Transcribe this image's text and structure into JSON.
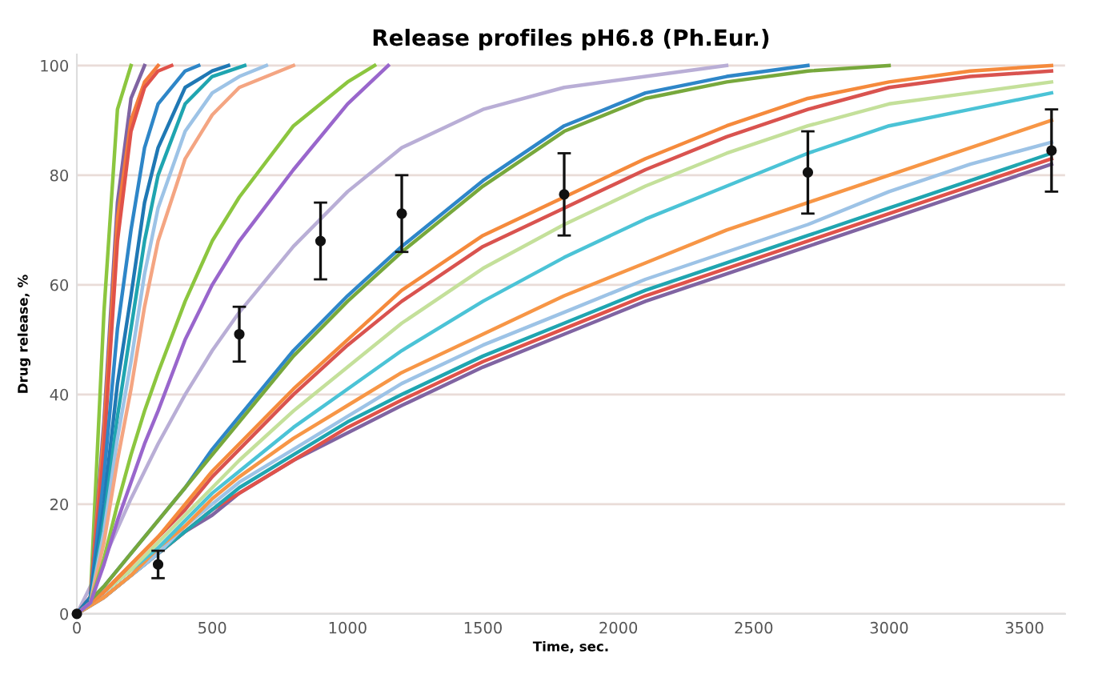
{
  "chart_data": {
    "type": "line",
    "title": "Release profiles pH6.8 (Ph.Eur.)",
    "xlabel": "Time, sec.",
    "ylabel": "Drug release, %",
    "x": [
      0,
      100,
      200,
      300,
      400,
      500,
      600,
      800,
      1000,
      1200,
      1500,
      1800,
      2100,
      2400,
      2700,
      3000,
      3300,
      3600
    ],
    "xlim": [
      0,
      3650
    ],
    "ylim": [
      0,
      102
    ],
    "xticks": [
      0,
      500,
      1000,
      1500,
      2000,
      2500,
      3000,
      3500
    ],
    "yticks": [
      0,
      20,
      40,
      60,
      80,
      100
    ],
    "grid": "y",
    "legend": false,
    "marker": "none",
    "line_style": "solid",
    "series": [
      {
        "color": "#8064a2",
        "values": [
          0,
          3,
          7,
          11,
          15,
          18,
          22,
          28,
          33,
          38,
          45,
          51,
          57,
          62,
          67,
          72,
          77,
          82
        ]
      },
      {
        "color": "#e0524a",
        "values": [
          0,
          3,
          7,
          11,
          15,
          19,
          22,
          28,
          34,
          39,
          46,
          52,
          58,
          63,
          68,
          73,
          78,
          83
        ]
      },
      {
        "color": "#1fa5b0",
        "values": [
          0,
          3,
          7,
          11,
          15,
          19,
          23,
          29,
          35,
          40,
          47,
          53,
          59,
          64,
          69,
          74,
          79,
          84
        ]
      },
      {
        "color": "#9dc3e6",
        "values": [
          0,
          3,
          7,
          11,
          16,
          20,
          24,
          30,
          36,
          42,
          49,
          55,
          61,
          66,
          71,
          77,
          82,
          86
        ]
      },
      {
        "color": "#f79646",
        "values": [
          0,
          3,
          7,
          12,
          16,
          21,
          25,
          32,
          38,
          44,
          51,
          58,
          64,
          70,
          75,
          80,
          85,
          90
        ]
      },
      {
        "color": "#4bc3d6",
        "values": [
          0,
          4,
          8,
          12,
          17,
          22,
          26,
          34,
          41,
          48,
          57,
          65,
          72,
          78,
          84,
          89,
          92,
          95
        ]
      },
      {
        "color": "#c4e09a",
        "values": [
          0,
          4,
          8,
          13,
          18,
          23,
          28,
          37,
          45,
          53,
          63,
          71,
          78,
          84,
          89,
          93,
          95,
          97
        ]
      },
      {
        "color": "#d9534f",
        "values": [
          0,
          4,
          9,
          14,
          19,
          25,
          30,
          40,
          49,
          57,
          67,
          74,
          81,
          87,
          92,
          96,
          98,
          99
        ]
      },
      {
        "color": "#f58a3c",
        "values": [
          0,
          4,
          9,
          14,
          20,
          26,
          31,
          41,
          50,
          59,
          69,
          76,
          83,
          89,
          94,
          97,
          99,
          100
        ]
      },
      {
        "color": "#2e86c8",
        "values": [
          0,
          5,
          11,
          17,
          23,
          30,
          36,
          48,
          58,
          67,
          79,
          89,
          95,
          98,
          100,
          null,
          null,
          null
        ]
      },
      {
        "color": "#77a83c",
        "values": [
          0,
          5,
          11,
          17,
          23,
          29,
          35,
          47,
          57,
          66,
          78,
          88,
          94,
          97,
          99,
          100,
          null,
          null
        ]
      },
      {
        "color": "#b9aed6",
        "values": [
          0,
          10,
          21,
          31,
          40,
          48,
          55,
          67,
          77,
          85,
          92,
          96,
          98,
          100,
          null,
          null,
          null,
          null
        ]
      },
      {
        "color": "#8cc63f",
        "x": [
          0,
          50,
          100,
          150,
          200
        ],
        "values": [
          0,
          3,
          55,
          92,
          100
        ]
      },
      {
        "color": "#8064a2",
        "x": [
          0,
          50,
          100,
          150,
          200,
          250
        ],
        "values": [
          0,
          3,
          35,
          75,
          94,
          100
        ]
      },
      {
        "color": "#f47c3c",
        "x": [
          0,
          50,
          100,
          150,
          200,
          250,
          300
        ],
        "values": [
          0,
          3,
          33,
          72,
          90,
          97,
          100
        ]
      },
      {
        "color": "#e0524a",
        "x": [
          0,
          50,
          100,
          150,
          200,
          250,
          300,
          350
        ],
        "values": [
          0,
          3,
          30,
          68,
          88,
          96,
          99,
          100
        ]
      },
      {
        "color": "#2e86c8",
        "x": [
          0,
          50,
          100,
          150,
          200,
          250,
          300,
          400,
          450
        ],
        "values": [
          0,
          3,
          25,
          52,
          70,
          85,
          93,
          99,
          100
        ]
      },
      {
        "color": "#1f78b4",
        "x": [
          0,
          50,
          100,
          150,
          200,
          250,
          300,
          400,
          500,
          560
        ],
        "values": [
          0,
          3,
          20,
          42,
          58,
          75,
          85,
          96,
          99,
          100
        ]
      },
      {
        "color": "#1fa5b0",
        "x": [
          0,
          50,
          100,
          150,
          200,
          250,
          300,
          400,
          500,
          620
        ],
        "values": [
          0,
          2,
          17,
          36,
          52,
          68,
          80,
          93,
          98,
          100
        ]
      },
      {
        "color": "#9dc3e6",
        "x": [
          0,
          50,
          100,
          150,
          200,
          250,
          300,
          400,
          500,
          600,
          700
        ],
        "values": [
          0,
          2,
          15,
          32,
          46,
          62,
          74,
          88,
          95,
          98,
          100
        ]
      },
      {
        "color": "#f4a582",
        "x": [
          0,
          50,
          100,
          150,
          200,
          250,
          300,
          400,
          500,
          600,
          800
        ],
        "values": [
          0,
          2,
          13,
          28,
          41,
          56,
          68,
          83,
          91,
          96,
          100
        ]
      },
      {
        "color": "#8cc63f",
        "x": [
          0,
          50,
          100,
          150,
          200,
          250,
          300,
          400,
          500,
          600,
          800,
          1000,
          1100
        ],
        "values": [
          0,
          2,
          10,
          20,
          29,
          37,
          44,
          57,
          68,
          76,
          89,
          97,
          100
        ]
      },
      {
        "color": "#9966cc",
        "x": [
          0,
          50,
          100,
          150,
          200,
          250,
          300,
          400,
          500,
          600,
          800,
          1000,
          1150
        ],
        "values": [
          0,
          2,
          9,
          17,
          24,
          31,
          37,
          50,
          60,
          68,
          81,
          93,
          100
        ]
      },
      {
        "type": "scatter",
        "marker": "circle",
        "color": "#111111",
        "x": [
          0,
          300,
          600,
          900,
          1200,
          1800,
          2700,
          3600
        ],
        "values": [
          0,
          9,
          51,
          68,
          73,
          76.5,
          80.5,
          84.5
        ],
        "errors": [
          null,
          2.5,
          5,
          7,
          7,
          7.5,
          7.5,
          7.5
        ]
      }
    ]
  }
}
